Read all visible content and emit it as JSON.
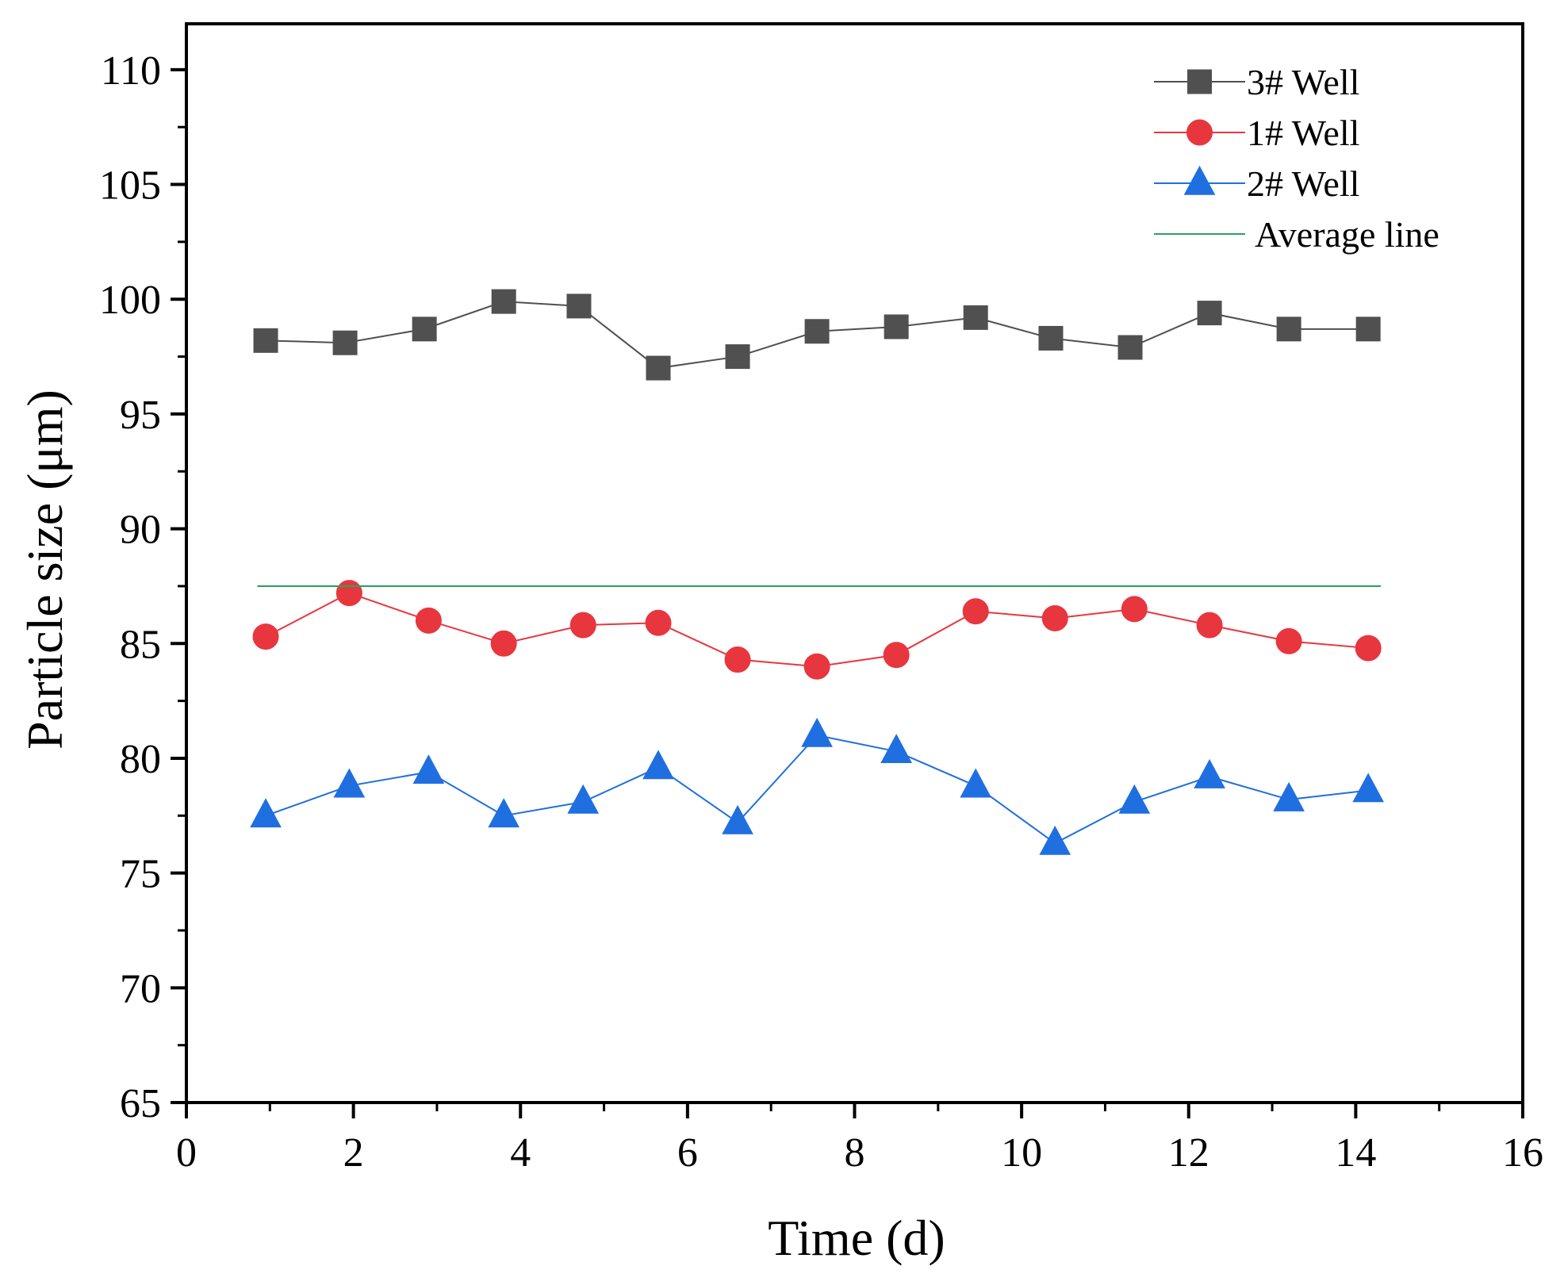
{
  "chart_data": {
    "type": "line",
    "title": "",
    "xlabel": "Time (d)",
    "ylabel": "Particle size (μm)",
    "xlim": [
      0,
      16
    ],
    "ylim": [
      65,
      112
    ],
    "x_ticks": [
      0,
      2,
      4,
      6,
      8,
      10,
      12,
      14,
      16
    ],
    "y_ticks": [
      65,
      70,
      75,
      80,
      85,
      90,
      95,
      100,
      105,
      110
    ],
    "grid": false,
    "legend_position": "top-right",
    "series": [
      {
        "name": "3# Well",
        "color": "#505050",
        "marker": "square",
        "x": [
          0.95,
          1.9,
          2.85,
          3.8,
          4.7,
          5.65,
          6.6,
          7.55,
          8.5,
          9.45,
          10.35,
          11.3,
          12.25,
          13.2,
          14.15
        ],
        "values": [
          98.2,
          98.1,
          98.7,
          99.9,
          99.7,
          97.0,
          97.5,
          98.6,
          98.8,
          99.2,
          98.3,
          97.9,
          99.4,
          98.7,
          98.7
        ]
      },
      {
        "name": "1# Well",
        "color": "#e8363f",
        "marker": "circle",
        "x": [
          0.95,
          1.95,
          2.9,
          3.8,
          4.75,
          5.65,
          6.6,
          7.55,
          8.5,
          9.45,
          10.4,
          11.35,
          12.25,
          13.2,
          14.15
        ],
        "values": [
          85.3,
          87.2,
          86.0,
          85.0,
          85.8,
          85.9,
          84.3,
          84.0,
          84.5,
          86.4,
          86.1,
          86.5,
          85.8,
          85.1,
          84.8
        ]
      },
      {
        "name": "2# Well",
        "color": "#1f6fe0",
        "marker": "triangle",
        "x": [
          0.95,
          1.95,
          2.9,
          3.8,
          4.75,
          5.65,
          6.6,
          7.55,
          8.5,
          9.45,
          10.4,
          11.35,
          12.25,
          13.2,
          14.15
        ],
        "values": [
          77.5,
          78.8,
          79.4,
          77.5,
          78.1,
          79.6,
          77.2,
          81.0,
          80.3,
          78.8,
          76.3,
          78.1,
          79.2,
          78.2,
          78.6
        ]
      },
      {
        "name": "Average line",
        "color": "#2ca25f",
        "marker": "none",
        "x": [
          0.85,
          14.3
        ],
        "values": [
          87.5,
          87.5
        ]
      }
    ]
  }
}
